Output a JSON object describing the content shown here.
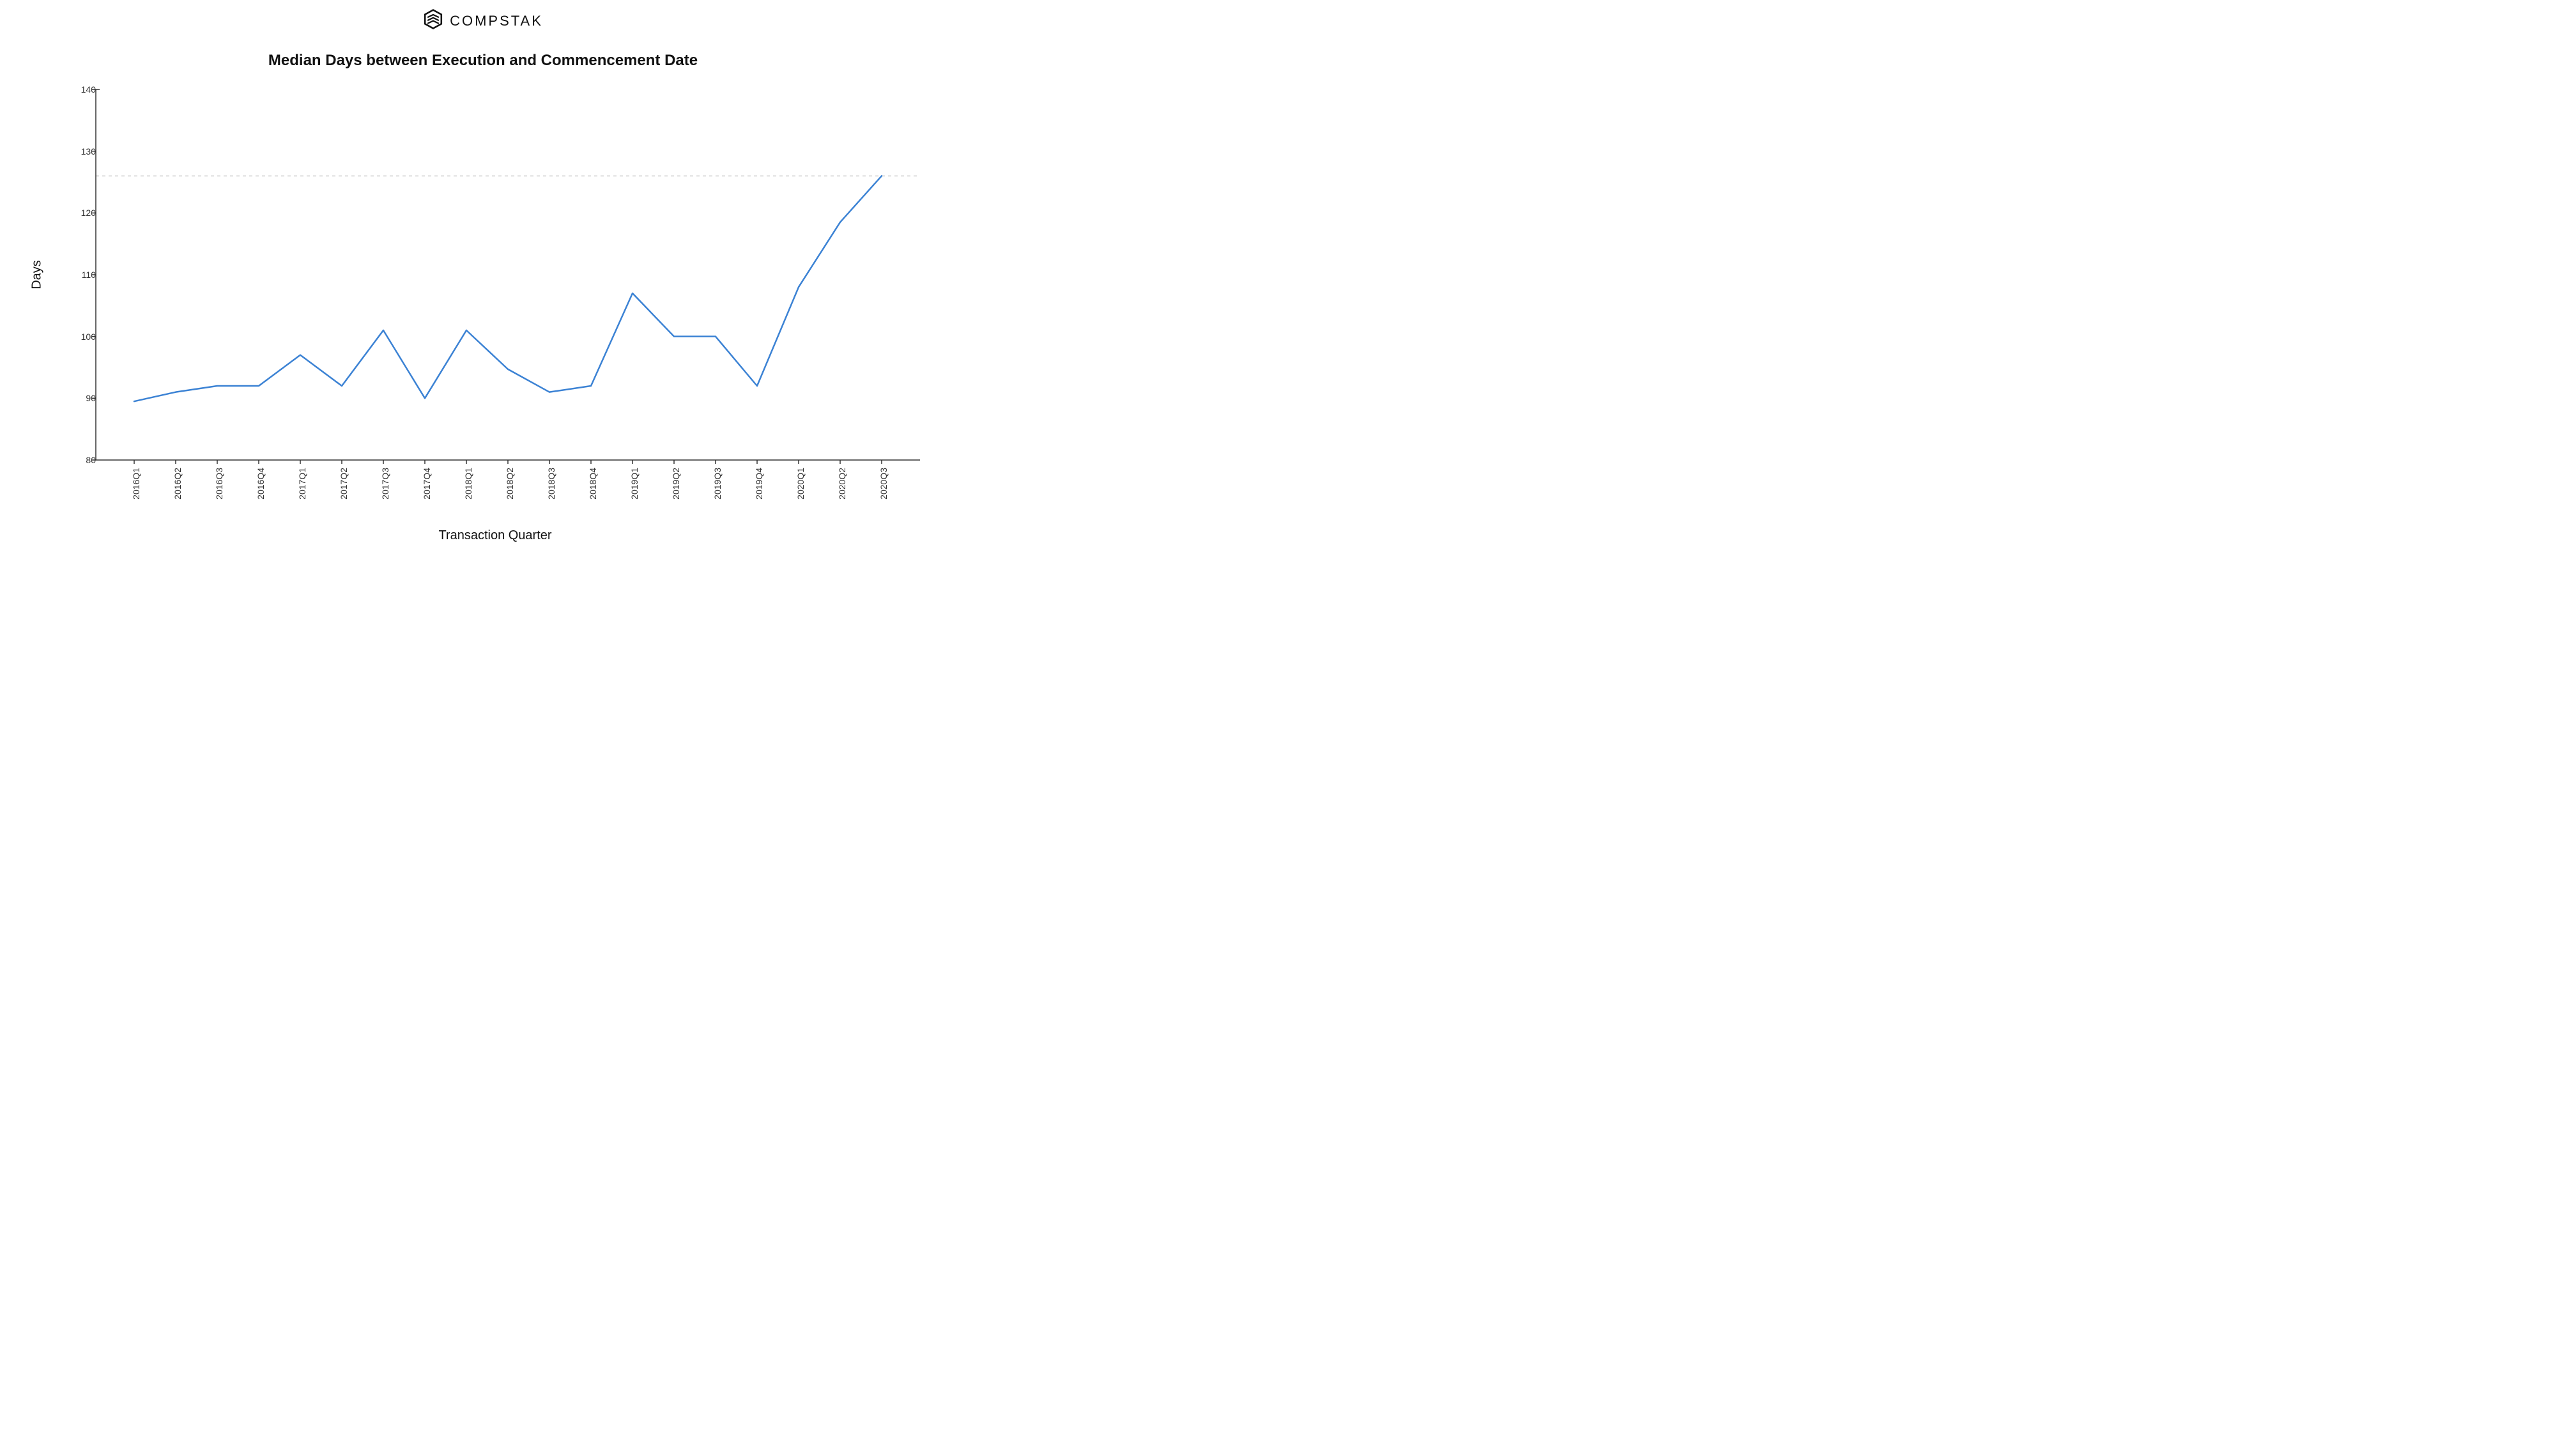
{
  "brand": {
    "name": "COMPSTAK"
  },
  "chart": {
    "type": "line",
    "title": "Median Days between Execution and Commencement Date",
    "xlabel": "Transaction Quarter",
    "ylabel": "Days",
    "background_color": "#ffffff",
    "line_color": "#3b82d4",
    "line_width": 2.5,
    "axis_color": "#333333",
    "grid_dash_color": "#cccccc",
    "reference_line_value": 126,
    "ylim": [
      80,
      140
    ],
    "ytick_step": 10,
    "yticks": [
      80,
      90,
      100,
      110,
      120,
      130,
      140
    ],
    "categories": [
      "2016Q1",
      "2016Q2",
      "2016Q3",
      "2016Q4",
      "2017Q1",
      "2017Q2",
      "2017Q3",
      "2017Q4",
      "2018Q1",
      "2018Q2",
      "2018Q3",
      "2018Q4",
      "2019Q1",
      "2019Q2",
      "2019Q3",
      "2019Q4",
      "2020Q1",
      "2020Q2",
      "2020Q3"
    ],
    "values": [
      89.5,
      91,
      92,
      92,
      97,
      92,
      101,
      90,
      101,
      94.7,
      91,
      92,
      107,
      100,
      100,
      92,
      108,
      118.5,
      126
    ],
    "title_fontsize": 24,
    "label_fontsize": 20,
    "tick_fontsize": 14
  }
}
